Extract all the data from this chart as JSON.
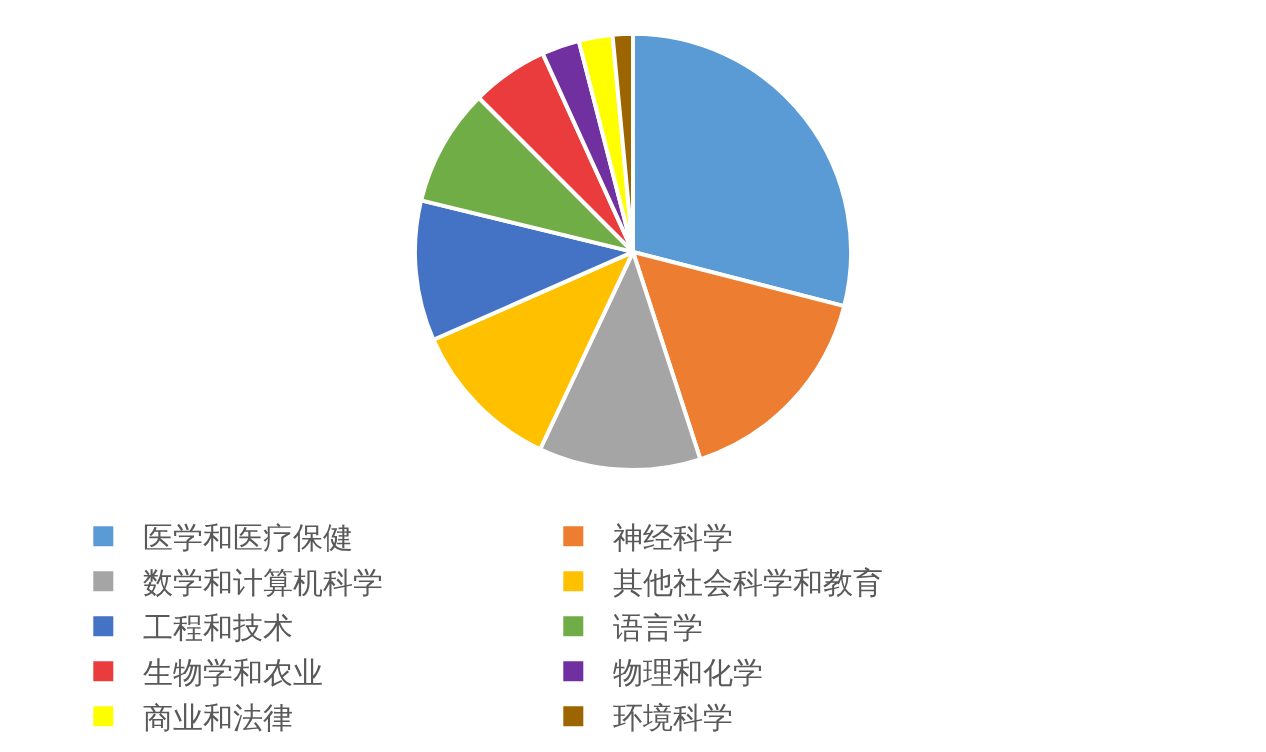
{
  "chart_data": {
    "type": "pie",
    "categories": [
      "医学和医疗保健",
      "神经科学",
      "数学和计算机科学",
      "其他社会科学和教育",
      "工程和技术",
      "语言学",
      "生物学和农业",
      "物理和化学",
      "商业和法律",
      "环境科学"
    ],
    "values": [
      29,
      16,
      12,
      11.4,
      10.4,
      8.7,
      5.7,
      2.8,
      2.5,
      1.5
    ],
    "colors": [
      "#5b9bd5",
      "#ed7d31",
      "#a5a5a5",
      "#ffc000",
      "#4472c4",
      "#70ad47",
      "#ea3c3c",
      "#7030a0",
      "#ffff00",
      "#9c6500"
    ],
    "legend": "bottom"
  }
}
